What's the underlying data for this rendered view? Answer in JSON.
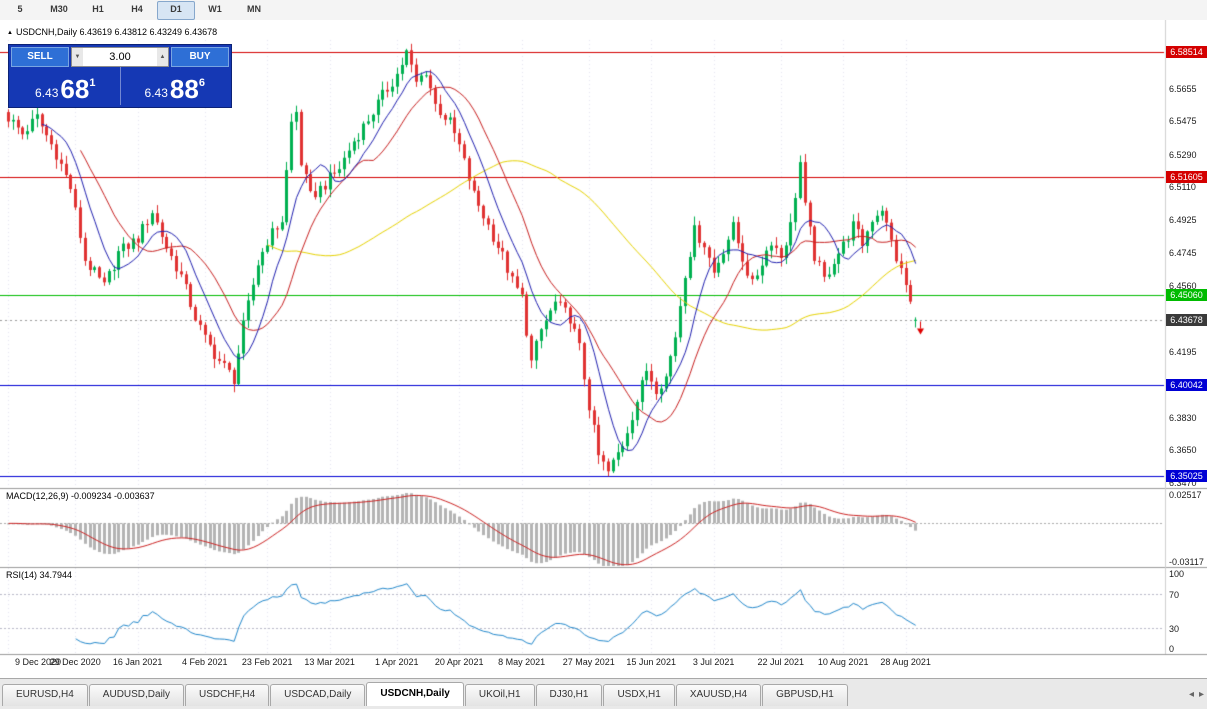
{
  "toolbar": {
    "timeframes": [
      "5",
      "M30",
      "H1",
      "H4",
      "D1",
      "W1",
      "MN"
    ],
    "active_timeframe": "D1"
  },
  "chart": {
    "title": "USDCNH,Daily 6.43619 6.43812 6.43249 6.43678",
    "symbol": "USDCNH",
    "period": "Daily",
    "ohlc": {
      "open": "6.43619",
      "high": "6.43812",
      "low": "6.43249",
      "close": "6.43678"
    },
    "price_ticks": [
      "6.5655",
      "6.5475",
      "6.5290",
      "6.5110",
      "6.4925",
      "6.4745",
      "6.4560",
      "6.4380",
      "6.4195",
      "6.4015",
      "6.3830",
      "6.3650",
      "6.3470"
    ],
    "levels": [
      {
        "label": "6.58514",
        "value": 6.58514,
        "color": "#d40000"
      },
      {
        "label": "6.51605",
        "value": 6.51605,
        "color": "#d40000"
      },
      {
        "label": "6.45060",
        "value": 6.4506,
        "color": "#00bb00"
      },
      {
        "label": "6.40042",
        "value": 6.40042,
        "color": "#0000d4"
      },
      {
        "label": "6.35025",
        "value": 6.35025,
        "color": "#0000d4"
      }
    ],
    "current_price": {
      "label": "6.43678",
      "value": 6.43678,
      "color": "#3a3a3a"
    },
    "date_labels": [
      "9 Dec 2020",
      "29 Dec 2020",
      "16 Jan 2021",
      "4 Feb 2021",
      "23 Feb 2021",
      "13 Mar 2021",
      "1 Apr 2021",
      "20 Apr 2021",
      "8 May 2021",
      "27 May 2021",
      "15 Jun 2021",
      "3 Jul 2021",
      "22 Jul 2021",
      "10 Aug 2021",
      "28 Aug 2021"
    ]
  },
  "trade_panel": {
    "sell_label": "SELL",
    "buy_label": "BUY",
    "volume": "3.00",
    "sell_price_prefix": "6.43",
    "sell_price_big": "68",
    "sell_price_sup": "1",
    "buy_price_prefix": "6.43",
    "buy_price_big": "88",
    "buy_price_sup": "6"
  },
  "indicators": {
    "macd_label": "MACD(12,26,9) -0.009234 -0.003637",
    "macd_axis_top": "0.02517",
    "macd_axis_bottom": "-0.03117",
    "rsi_label": "RSI(14) 34.7944",
    "rsi_axis": [
      "100",
      "70",
      "30",
      "0"
    ]
  },
  "tabs": {
    "items": [
      "EURUSD,H4",
      "AUDUSD,Daily",
      "USDCHF,H4",
      "USDCAD,Daily",
      "USDCNH,Daily",
      "UKOil,H1",
      "DJ30,H1",
      "USDX,H1",
      "XAUUSD,H4",
      "GBPUSD,H1"
    ],
    "active": "USDCNH,Daily"
  },
  "chart_data": {
    "type": "candlestick",
    "symbol": "USDCNH",
    "timeframe": "Daily",
    "bars": 190,
    "date_label_indices": [
      0,
      14,
      27,
      41,
      54,
      67,
      81,
      94,
      107,
      121,
      134,
      147,
      161,
      174,
      187
    ],
    "last_bar": {
      "o": 6.43619,
      "h": 6.43812,
      "l": 6.43249,
      "c": 6.43678
    },
    "price_path": [
      [
        0,
        6.549
      ],
      [
        3,
        6.54
      ],
      [
        6,
        6.549
      ],
      [
        10,
        6.529
      ],
      [
        13,
        6.51
      ],
      [
        16,
        6.47
      ],
      [
        20,
        6.455
      ],
      [
        23,
        6.474
      ],
      [
        27,
        6.482
      ],
      [
        30,
        6.497
      ],
      [
        33,
        6.477
      ],
      [
        36,
        6.461
      ],
      [
        39,
        6.438
      ],
      [
        41,
        6.426
      ],
      [
        44,
        6.414
      ],
      [
        47,
        6.404
      ],
      [
        49,
        6.433
      ],
      [
        52,
        6.468
      ],
      [
        54,
        6.481
      ],
      [
        57,
        6.492
      ],
      [
        59,
        6.546
      ],
      [
        60,
        6.552
      ],
      [
        61,
        6.524
      ],
      [
        63,
        6.505
      ],
      [
        66,
        6.512
      ],
      [
        69,
        6.521
      ],
      [
        72,
        6.536
      ],
      [
        75,
        6.548
      ],
      [
        78,
        6.561
      ],
      [
        81,
        6.573
      ],
      [
        83,
        6.585
      ],
      [
        85,
        6.568
      ],
      [
        87,
        6.575
      ],
      [
        89,
        6.556
      ],
      [
        92,
        6.546
      ],
      [
        94,
        6.533
      ],
      [
        97,
        6.506
      ],
      [
        100,
        6.489
      ],
      [
        103,
        6.472
      ],
      [
        105,
        6.458
      ],
      [
        107,
        6.449
      ],
      [
        109,
        6.413
      ],
      [
        111,
        6.431
      ],
      [
        114,
        6.446
      ],
      [
        117,
        6.438
      ],
      [
        119,
        6.421
      ],
      [
        121,
        6.389
      ],
      [
        123,
        6.361
      ],
      [
        125,
        6.352
      ],
      [
        128,
        6.368
      ],
      [
        131,
        6.392
      ],
      [
        133,
        6.409
      ],
      [
        135,
        6.399
      ],
      [
        137,
        6.405
      ],
      [
        139,
        6.428
      ],
      [
        141,
        6.463
      ],
      [
        143,
        6.486
      ],
      [
        145,
        6.479
      ],
      [
        147,
        6.463
      ],
      [
        149,
        6.476
      ],
      [
        151,
        6.488
      ],
      [
        153,
        6.471
      ],
      [
        155,
        6.456
      ],
      [
        157,
        6.469
      ],
      [
        159,
        6.481
      ],
      [
        161,
        6.472
      ],
      [
        163,
        6.489
      ],
      [
        165,
        6.524
      ],
      [
        166,
        6.499
      ],
      [
        168,
        6.472
      ],
      [
        170,
        6.459
      ],
      [
        172,
        6.47
      ],
      [
        174,
        6.478
      ],
      [
        176,
        6.489
      ],
      [
        178,
        6.479
      ],
      [
        180,
        6.493
      ],
      [
        182,
        6.499
      ],
      [
        183,
        6.489
      ],
      [
        185,
        6.471
      ],
      [
        187,
        6.456
      ],
      [
        188,
        6.446
      ],
      [
        189,
        6.4368
      ]
    ],
    "moving_averages": [
      {
        "period": 55,
        "type": "sma",
        "color": "#e6d200"
      },
      {
        "period": 16,
        "type": "sma",
        "color": "#c82020"
      },
      {
        "period": 8,
        "type": "sma",
        "color": "#2020b0"
      }
    ],
    "macd": {
      "fast": 12,
      "slow": 26,
      "signal": 9,
      "histogram_color": "#b4b4b4",
      "signal_color": "#cc2222"
    },
    "rsi": {
      "period": 14,
      "color": "#2288cc",
      "levels": [
        70,
        30
      ]
    },
    "candle_colors": {
      "up": "#00b050",
      "down": "#e03232"
    },
    "sell_arrow": {
      "index": 189,
      "color": "#e00000"
    }
  }
}
